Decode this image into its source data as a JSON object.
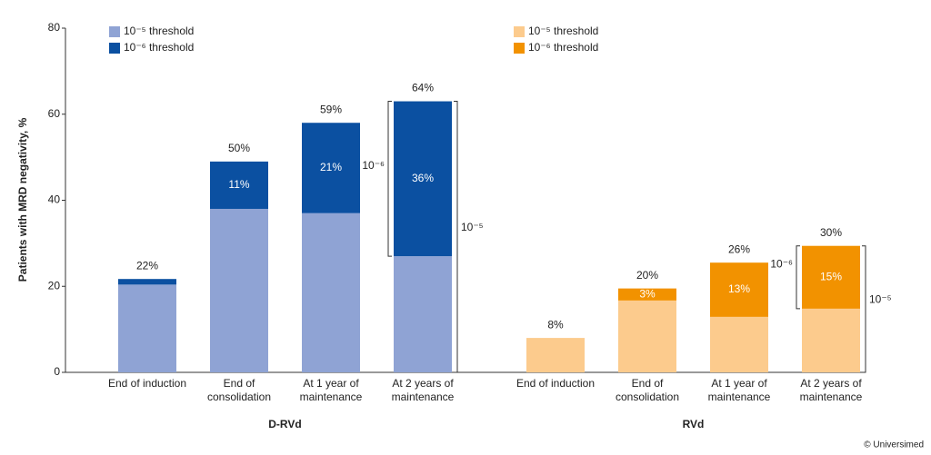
{
  "chart_data": {
    "type": "bar",
    "stacked": true,
    "y_label": "Patients with MRD negativity, %",
    "ylim": [
      0,
      80
    ],
    "yticks": [
      0,
      20,
      40,
      60,
      80
    ],
    "groups": [
      {
        "name": "D-RVd",
        "categories": [
          [
            "End of induction"
          ],
          [
            "End of",
            "consolidation"
          ],
          [
            "At 1 year of",
            "maintenance"
          ],
          [
            "At 2 years of",
            "maintenance"
          ]
        ],
        "series": [
          {
            "name": "10⁻⁵ threshold",
            "color": "#8fa3d4",
            "values": [
              20.4,
              38,
              37,
              27
            ]
          },
          {
            "name": "10⁻⁶ threshold",
            "color": "#0b50a1",
            "values": [
              1.3,
              11,
              21,
              36
            ],
            "value_labels": [
              null,
              "11%",
              "21%",
              "36%"
            ]
          }
        ],
        "total_labels": [
          "22%",
          "50%",
          "59%",
          "64%"
        ],
        "brackets": [
          "10⁻⁶",
          "10⁻⁵"
        ]
      },
      {
        "name": "RVd",
        "categories": [
          [
            "End of induction"
          ],
          [
            "End of",
            "consolidation"
          ],
          [
            "At 1 year of",
            "maintenance"
          ],
          [
            "At 2 years of",
            "maintenance"
          ]
        ],
        "series": [
          {
            "name": "10⁻⁵ threshold",
            "color": "#fccb8d",
            "values": [
              8,
              16.7,
              12.9,
              14.8
            ]
          },
          {
            "name": "10⁻⁶ threshold",
            "color": "#f29200",
            "values": [
              0,
              2.8,
              12.6,
              14.6
            ],
            "value_labels": [
              null,
              "3%",
              "13%",
              "15%"
            ]
          }
        ],
        "total_labels": [
          "8%",
          "20%",
          "26%",
          "30%"
        ],
        "brackets": [
          "10⁻⁶",
          "10⁻⁵"
        ]
      }
    ],
    "credit": "© Universimed"
  }
}
